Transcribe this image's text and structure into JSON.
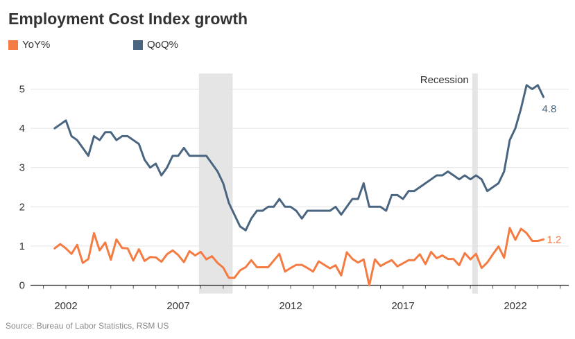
{
  "chart_data": {
    "type": "line",
    "title": "Employment Cost Index growth",
    "source": "Source: Bureau of Labor Statistics, RSM US",
    "x_start": 2001.5,
    "x_step": 0.25,
    "xlim": [
      2000.7,
      2025.2
    ],
    "ylim": [
      0,
      5.4
    ],
    "x_ticks": [
      2002,
      2007,
      2012,
      2017,
      2022
    ],
    "y_ticks": [
      0,
      1,
      2,
      3,
      4,
      5
    ],
    "grid": "horizontal",
    "legend_placement": "top-left",
    "recessions": [
      {
        "start": 2007.92,
        "end": 2009.42
      },
      {
        "start": 2020.08,
        "end": 2020.33
      }
    ],
    "recession_label": "Recession",
    "series": [
      {
        "name": "YoY%",
        "color": "#f47b42",
        "end_label": "1.2",
        "values": [
          0.94,
          1.05,
          0.94,
          0.8,
          1.03,
          0.57,
          0.67,
          1.33,
          0.89,
          1.09,
          0.65,
          1.17,
          0.95,
          0.94,
          0.63,
          0.92,
          0.62,
          0.72,
          0.71,
          0.6,
          0.79,
          0.89,
          0.77,
          0.59,
          0.87,
          0.76,
          0.85,
          0.66,
          0.74,
          0.57,
          0.45,
          0.19,
          0.19,
          0.38,
          0.46,
          0.64,
          0.46,
          0.46,
          0.46,
          0.63,
          0.8,
          0.35,
          0.44,
          0.52,
          0.52,
          0.44,
          0.35,
          0.61,
          0.52,
          0.43,
          0.51,
          0.25,
          0.84,
          0.67,
          0.58,
          0.66,
          0.0,
          0.66,
          0.49,
          0.57,
          0.64,
          0.48,
          0.56,
          0.64,
          0.64,
          0.79,
          0.54,
          0.85,
          0.69,
          0.76,
          0.67,
          0.67,
          0.51,
          0.82,
          0.66,
          0.8,
          0.44,
          0.58,
          0.79,
          0.99,
          0.7,
          1.46,
          1.16,
          1.44,
          1.33,
          1.13,
          1.13,
          1.17
        ]
      },
      {
        "name": "QoQ%",
        "color": "#4a6580",
        "end_label": "4.8",
        "values": [
          4.0,
          4.1,
          4.2,
          3.8,
          3.7,
          3.5,
          3.3,
          3.8,
          3.7,
          3.9,
          3.9,
          3.7,
          3.8,
          3.8,
          3.7,
          3.6,
          3.2,
          3.0,
          3.1,
          2.8,
          3.0,
          3.3,
          3.3,
          3.5,
          3.3,
          3.3,
          3.3,
          3.3,
          3.1,
          2.9,
          2.6,
          2.1,
          1.8,
          1.5,
          1.4,
          1.7,
          1.9,
          1.9,
          2.0,
          2.0,
          2.2,
          2.0,
          2.0,
          1.9,
          1.7,
          1.9,
          1.9,
          1.9,
          1.9,
          1.9,
          2.0,
          1.8,
          2.0,
          2.2,
          2.2,
          2.6,
          2.0,
          2.0,
          2.0,
          1.9,
          2.3,
          2.3,
          2.2,
          2.4,
          2.4,
          2.5,
          2.6,
          2.7,
          2.8,
          2.8,
          2.9,
          2.8,
          2.7,
          2.8,
          2.7,
          2.8,
          2.7,
          2.4,
          2.5,
          2.6,
          2.9,
          3.7,
          4.0,
          4.5,
          5.1,
          5.0,
          5.1,
          4.8
        ]
      }
    ]
  }
}
